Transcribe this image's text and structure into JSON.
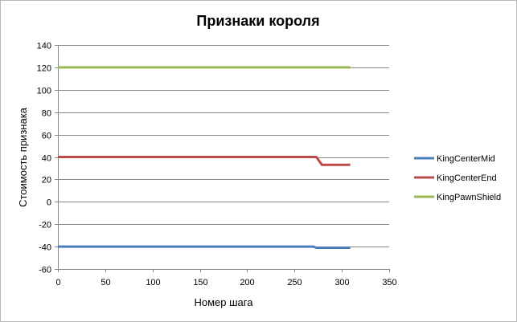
{
  "chart_data": {
    "type": "line",
    "title": "Признаки короля",
    "xlabel": "Номер шага",
    "ylabel": "Стоимость признака",
    "xlim": [
      0,
      350
    ],
    "ylim": [
      -60,
      140
    ],
    "x_ticks": [
      0,
      50,
      100,
      150,
      200,
      250,
      300,
      350
    ],
    "y_ticks": [
      -60,
      -40,
      -20,
      0,
      20,
      40,
      60,
      80,
      100,
      120,
      140
    ],
    "grid": true,
    "legend_position": "right",
    "series": [
      {
        "name": "KingCenterMid",
        "color": "#4a7ebb",
        "points": [
          [
            0,
            -40
          ],
          [
            270,
            -40
          ],
          [
            273,
            -41
          ],
          [
            309,
            -41
          ]
        ]
      },
      {
        "name": "KingCenterEnd",
        "color": "#be4b48",
        "points": [
          [
            0,
            40
          ],
          [
            270,
            40
          ],
          [
            273,
            40
          ],
          [
            279,
            33
          ],
          [
            309,
            33
          ]
        ]
      },
      {
        "name": "KingPawnShield",
        "color": "#98b954",
        "points": [
          [
            0,
            120
          ],
          [
            309,
            120
          ]
        ]
      }
    ]
  }
}
